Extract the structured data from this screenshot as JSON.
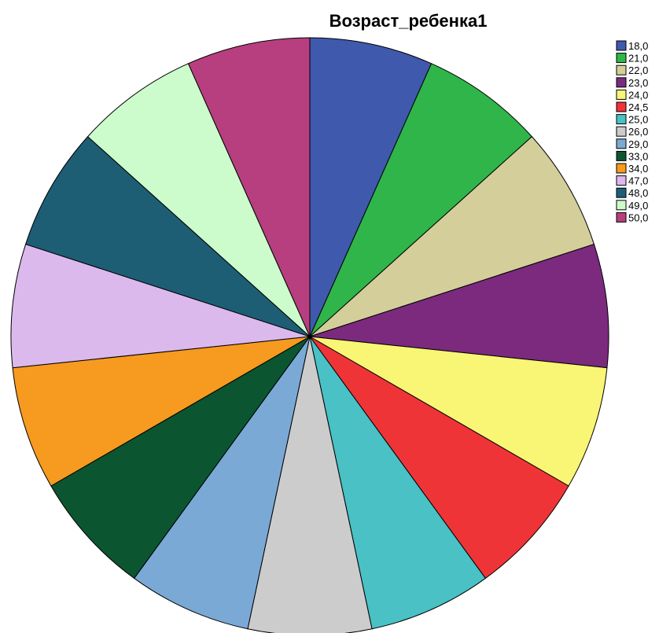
{
  "chart_data": {
    "type": "pie",
    "title": "Возраст_ребенка1",
    "start_angle_deg": 0,
    "direction": "clockwise",
    "legend_placement": "right",
    "categories": [
      "18,0",
      "21,0",
      "22,0",
      "23,0",
      "24,0",
      "24,5",
      "25,0",
      "26,0",
      "29,0",
      "33,0",
      "34,0",
      "47,0",
      "48,0",
      "49,0",
      "50,0"
    ],
    "values": [
      1,
      1,
      1,
      1,
      1,
      1,
      1,
      1,
      1,
      1,
      1,
      1,
      1,
      1,
      1
    ],
    "colors": [
      "#3f59ac",
      "#2fb54a",
      "#d4ce9b",
      "#7b2a7e",
      "#f9f575",
      "#ef3438",
      "#49c1c5",
      "#cccccc",
      "#7aa9d6",
      "#0b5530",
      "#f69a20",
      "#dbb9ed",
      "#1d5e75",
      "#ccfccc",
      "#b73f7f"
    ]
  }
}
